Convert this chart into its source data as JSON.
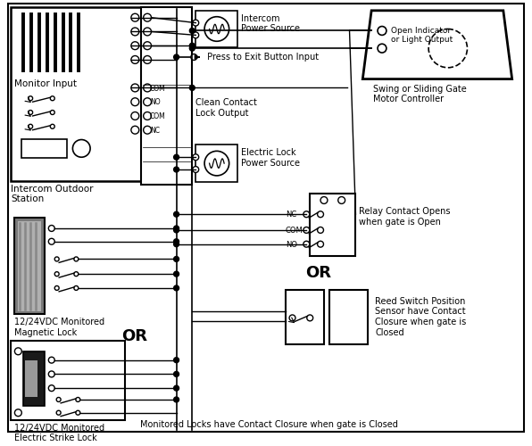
{
  "bg_color": "#ffffff",
  "line_color": "#000000",
  "labels": {
    "intercom_power_source": "Intercom\nPower Source",
    "press_to_exit": " Press to Exit Button Input",
    "monitor_input": "Monitor Input",
    "intercom_outdoor": "Intercom Outdoor\nStation",
    "clean_contact": "Clean Contact\nLock Output",
    "electric_lock_power": "Electric Lock\nPower Source",
    "magnetic_lock": "12/24VDC Monitored\nMagnetic Lock",
    "electric_strike": "12/24VDC Monitored\nElectric Strike Lock",
    "swing_gate": "Swing or Sliding Gate\nMotor Controller",
    "open_indicator": "Open Indicator\nor Light Output",
    "relay_contact": "Relay Contact Opens\nwhen gate is Open",
    "reed_switch": "Reed Switch Position\nSensor have Contact\nClosure when gate is\nClosed",
    "or1": "OR",
    "or2": "OR",
    "footer": "Monitored Locks have Contact Closure when gate is Closed",
    "com": "COM",
    "no": "NO",
    "nc": "NC"
  }
}
